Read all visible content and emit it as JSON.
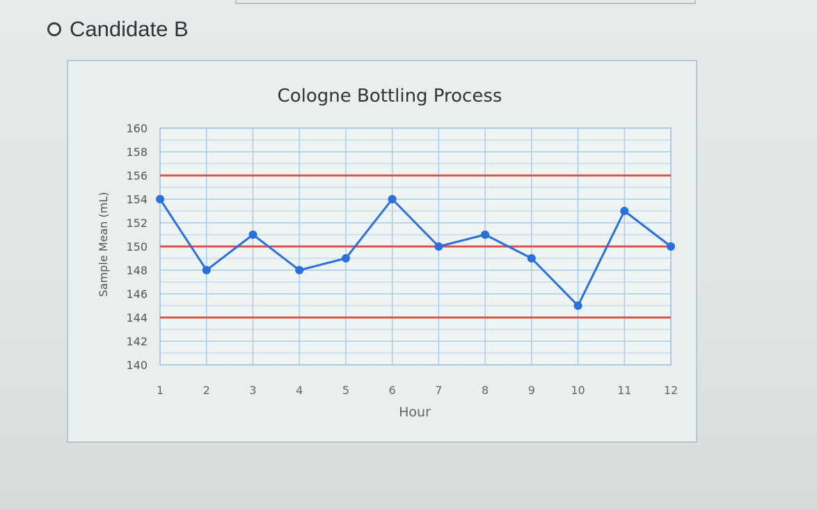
{
  "question": {
    "option_label": "Candidate B"
  },
  "chart_data": {
    "type": "line",
    "title": "Cologne Bottling Process",
    "xlabel": "Hour",
    "ylabel": "Sample Mean (mL)",
    "categories": [
      "1",
      "2",
      "3",
      "4",
      "5",
      "6",
      "7",
      "8",
      "9",
      "10",
      "11",
      "12"
    ],
    "series": [
      {
        "values": [
          154,
          148,
          151,
          148,
          149,
          154,
          150,
          151,
          149,
          145,
          153,
          150
        ]
      }
    ],
    "control_limits": {
      "upper": 156,
      "center": 150,
      "lower": 144
    },
    "ylim": [
      140,
      160
    ],
    "yticks": [
      140,
      142,
      144,
      146,
      148,
      150,
      152,
      154,
      156,
      158,
      160
    ],
    "grid": true,
    "colors": {
      "series": "#2a6fdb",
      "limits": "#d9544a",
      "grid": "#9cc2e6"
    }
  }
}
